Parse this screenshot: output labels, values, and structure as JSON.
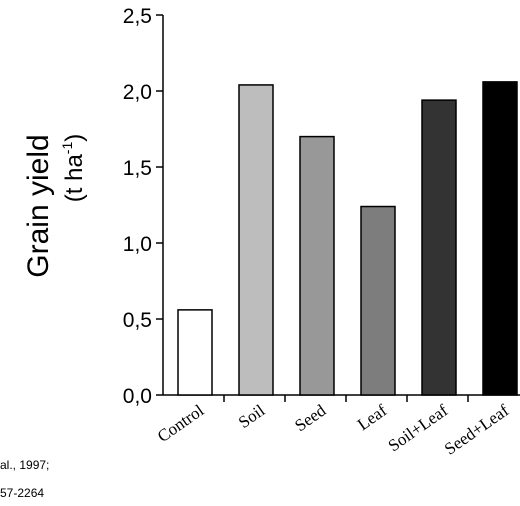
{
  "chart_data": {
    "type": "bar",
    "categories": [
      "Control",
      "Soil",
      "Seed",
      "Leaf",
      "Soil+Leaf",
      "Seed+Leaf"
    ],
    "values": [
      0.56,
      2.04,
      1.7,
      1.24,
      1.94,
      2.06
    ],
    "bar_colors": [
      "#ffffff",
      "#bdbdbd",
      "#989898",
      "#7d7d7d",
      "#333333",
      "#000000"
    ],
    "yticks": [
      "0,0",
      "0,5",
      "1,0",
      "1,5",
      "2,0",
      "2,5"
    ],
    "ylim": [
      0,
      2.5
    ],
    "ylabel_line1": "Grain yield",
    "ylabel_line2_main": "(t ha",
    "ylabel_line2_sup": "-1",
    "ylabel_line2_end": ")"
  },
  "citation": {
    "line1": "al., 1997;",
    "line2": "57-2264"
  }
}
